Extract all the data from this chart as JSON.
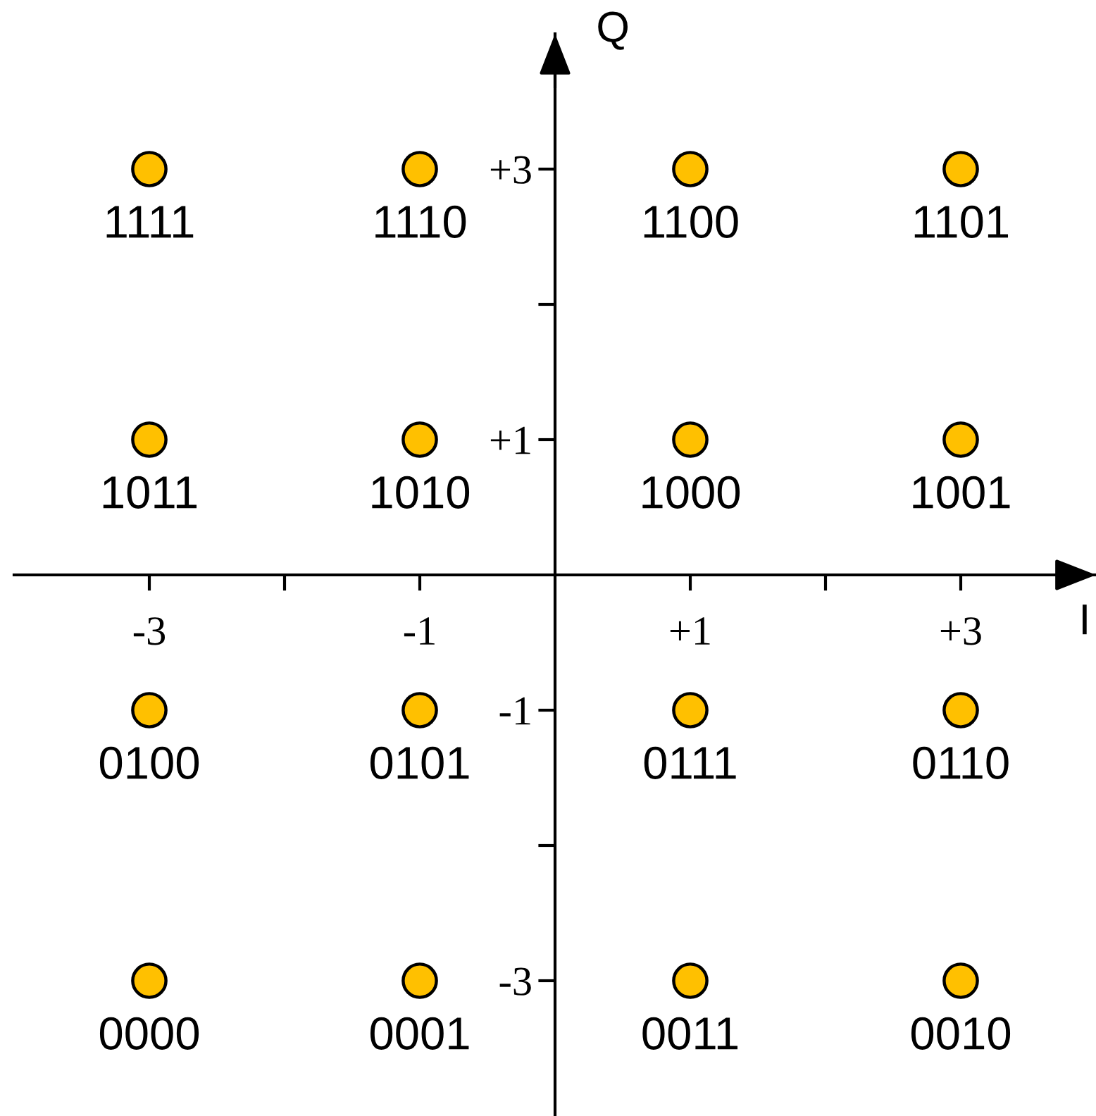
{
  "chart_data": {
    "type": "scatter",
    "xlabel": "I",
    "ylabel": "Q",
    "x": [
      -3,
      -1,
      1,
      3,
      -3,
      -1,
      1,
      3,
      -3,
      -1,
      1,
      3,
      -3,
      -1,
      1,
      3
    ],
    "values": [
      3,
      3,
      3,
      3,
      1,
      1,
      1,
      1,
      -1,
      -1,
      -1,
      -1,
      -3,
      -3,
      -3,
      -3
    ],
    "color": "#ffc000",
    "marker": "circle",
    "xlim": [
      -4,
      4
    ],
    "ylim": [
      -4,
      4
    ],
    "xticks": [
      -3,
      {
        "value": -2,
        "label": null
      },
      -1,
      {
        "value": 1,
        "label": "+1"
      },
      {
        "value": 2,
        "label": null
      },
      {
        "value": 3,
        "label": "+3"
      }
    ],
    "yticks": [
      -3,
      {
        "value": -2,
        "label": null
      },
      -1,
      {
        "value": 1,
        "label": "+1"
      },
      {
        "value": 2,
        "label": null
      },
      {
        "value": 3,
        "label": "+3"
      }
    ],
    "annotations": [
      {
        "text": "1111",
        "x": -3,
        "y": 3
      },
      {
        "text": "1110",
        "x": -1,
        "y": 3
      },
      {
        "text": "1100",
        "x": 1,
        "y": 3
      },
      {
        "text": "1101",
        "x": 3,
        "y": 3
      },
      {
        "text": "1011",
        "x": -3,
        "y": 1
      },
      {
        "text": "1010",
        "x": -1,
        "y": 1
      },
      {
        "text": "1000",
        "x": 1,
        "y": 1
      },
      {
        "text": "1001",
        "x": 3,
        "y": 1
      },
      {
        "text": "0100",
        "x": -3,
        "y": -1
      },
      {
        "text": "0101",
        "x": -1,
        "y": -1
      },
      {
        "text": "0111",
        "x": 1,
        "y": -1
      },
      {
        "text": "0110",
        "x": 3,
        "y": -1
      },
      {
        "text": "0000",
        "x": -3,
        "y": -3
      },
      {
        "text": "0001",
        "x": -1,
        "y": -3
      },
      {
        "text": "0011",
        "x": 1,
        "y": -3
      },
      {
        "text": "0010",
        "x": 3,
        "y": -3
      }
    ]
  }
}
